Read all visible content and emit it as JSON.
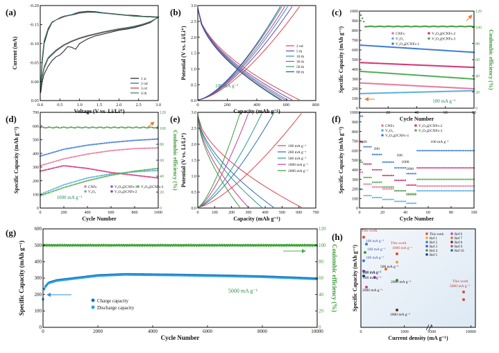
{
  "chart_data": [
    {
      "panel": "(a)",
      "type": "line",
      "xlabel": "Voltage (V vs. Li/Li⁺)",
      "ylabel": "Current (mA)",
      "xlim": [
        0,
        3.0
      ],
      "ylim": [
        -0.2,
        0.05
      ],
      "xticks": [
        "0.0",
        "0.5",
        "1.0",
        "1.5",
        "2.0",
        "2.5",
        "3.0"
      ],
      "yticks": [
        "0.05",
        "0.00",
        "-0.05",
        "-0.10",
        "-0.15",
        "-0.20"
      ],
      "legend": [
        "1 st",
        "2 nd",
        "3 rd",
        "4 th"
      ],
      "colors": [
        "#1a1a1a",
        "#2b56a8",
        "#c0392b",
        "#2e7d5b"
      ],
      "series": [
        {
          "name": "1 st",
          "x": [
            0.01,
            0.05,
            0.1,
            0.2,
            0.3,
            0.4,
            0.5,
            0.6,
            0.7,
            0.8,
            0.9,
            1.0,
            1.2,
            1.4,
            1.6,
            1.8,
            2.0,
            2.2,
            2.4,
            2.6,
            2.8,
            3.0,
            2.8,
            2.6,
            2.4,
            2.2,
            2.0,
            1.8,
            1.6,
            1.4,
            1.2,
            1.0,
            0.9,
            0.8,
            0.7,
            0.6,
            0.5,
            0.4,
            0.3,
            0.2,
            0.1,
            0.05,
            0.01
          ],
          "y": [
            -0.175,
            -0.1,
            -0.05,
            -0.015,
            0.005,
            0.012,
            0.018,
            0.022,
            0.024,
            0.026,
            0.03,
            0.033,
            0.035,
            0.034,
            0.031,
            0.029,
            0.027,
            0.025,
            0.024,
            0.022,
            0.021,
            0.02,
            0.005,
            -0.002,
            -0.008,
            -0.012,
            -0.015,
            -0.02,
            -0.025,
            -0.03,
            -0.038,
            -0.05,
            -0.065,
            -0.06,
            -0.058,
            -0.07,
            -0.08,
            -0.085,
            -0.095,
            -0.11,
            -0.13,
            -0.15,
            -0.18
          ]
        },
        {
          "name": "2 nd",
          "x": [
            0.01,
            0.05,
            0.1,
            0.2,
            0.3,
            0.4,
            0.5,
            0.6,
            0.7,
            0.8,
            0.9,
            1.0,
            1.2,
            1.4,
            1.6,
            1.8,
            2.0,
            2.2,
            2.4,
            2.6,
            2.8,
            3.0,
            2.8,
            2.6,
            2.4,
            2.2,
            2.0,
            1.8,
            1.6,
            1.4,
            1.2,
            1.0,
            0.8,
            0.6,
            0.4,
            0.2,
            0.1,
            0.05,
            0.01
          ],
          "y": [
            -0.17,
            -0.095,
            -0.045,
            -0.012,
            0.006,
            0.012,
            0.017,
            0.021,
            0.024,
            0.026,
            0.029,
            0.032,
            0.034,
            0.033,
            0.031,
            0.028,
            0.026,
            0.024,
            0.022,
            0.021,
            0.02,
            0.019,
            0.006,
            -0.001,
            -0.006,
            -0.01,
            -0.013,
            -0.017,
            -0.021,
            -0.026,
            -0.031,
            -0.037,
            -0.045,
            -0.055,
            -0.07,
            -0.09,
            -0.115,
            -0.14,
            -0.168
          ]
        },
        {
          "name": "3 rd",
          "x": [
            0.01,
            0.05,
            0.1,
            0.2,
            0.3,
            0.4,
            0.5,
            0.6,
            0.7,
            0.8,
            0.9,
            1.0,
            1.2,
            1.4,
            1.6,
            1.8,
            2.0,
            2.2,
            2.4,
            2.6,
            2.8,
            3.0,
            2.8,
            2.6,
            2.4,
            2.2,
            2.0,
            1.8,
            1.6,
            1.4,
            1.2,
            1.0,
            0.8,
            0.6,
            0.4,
            0.2,
            0.1,
            0.05,
            0.01
          ],
          "y": [
            -0.165,
            -0.09,
            -0.043,
            -0.011,
            0.006,
            0.012,
            0.017,
            0.021,
            0.023,
            0.025,
            0.028,
            0.031,
            0.033,
            0.032,
            0.03,
            0.028,
            0.026,
            0.024,
            0.022,
            0.021,
            0.02,
            0.019,
            0.007,
            0.0,
            -0.005,
            -0.009,
            -0.012,
            -0.016,
            -0.02,
            -0.025,
            -0.03,
            -0.036,
            -0.044,
            -0.054,
            -0.068,
            -0.088,
            -0.112,
            -0.137,
            -0.165
          ]
        },
        {
          "name": "4 th",
          "x": [
            0.01,
            0.05,
            0.1,
            0.2,
            0.3,
            0.4,
            0.5,
            0.6,
            0.7,
            0.8,
            0.9,
            1.0,
            1.2,
            1.4,
            1.6,
            1.8,
            2.0,
            2.2,
            2.4,
            2.6,
            2.8,
            3.0,
            2.8,
            2.6,
            2.4,
            2.2,
            2.0,
            1.8,
            1.6,
            1.4,
            1.2,
            1.0,
            0.8,
            0.6,
            0.4,
            0.2,
            0.1,
            0.05,
            0.01
          ],
          "y": [
            -0.16,
            -0.088,
            -0.042,
            -0.01,
            0.007,
            0.012,
            0.016,
            0.02,
            0.023,
            0.025,
            0.027,
            0.03,
            0.032,
            0.032,
            0.03,
            0.028,
            0.026,
            0.024,
            0.022,
            0.021,
            0.02,
            0.019,
            0.008,
            0.001,
            -0.004,
            -0.008,
            -0.011,
            -0.015,
            -0.019,
            -0.024,
            -0.029,
            -0.035,
            -0.043,
            -0.053,
            -0.067,
            -0.087,
            -0.11,
            -0.135,
            -0.162
          ]
        }
      ]
    },
    {
      "panel": "(b)",
      "type": "line",
      "xlabel": "Capacity (mAh g⁻¹)",
      "ylabel": "Potential (V vs. Li/Li⁺)",
      "xlim": [
        0,
        800
      ],
      "ylim": [
        0,
        3.0
      ],
      "xticks": [
        "0",
        "200",
        "400",
        "600",
        "800"
      ],
      "yticks": [
        "0.0",
        "0.5",
        "1.0",
        "1.5",
        "2.0",
        "2.5",
        "3.0"
      ],
      "annotation": "100 mA g⁻¹",
      "legend": [
        "2 nd",
        "5 th",
        "10 th",
        "30 th",
        "50 th",
        "80 th"
      ],
      "colors": [
        "#d9434b",
        "#7b3fa0",
        "#2a8fc2",
        "#cc3a8e",
        "#3a9a6a",
        "#2b4fa8"
      ],
      "capacities": [
        690,
        640,
        610,
        590,
        570,
        560
      ]
    },
    {
      "panel": "(c)",
      "type": "scatter",
      "xlabel": "Cycle Number",
      "ylabel": "Specific Capacity (mAh g⁻¹)",
      "y2label": "Coulombic efficiency (%)",
      "xlim": [
        0,
        80
      ],
      "ylim": [
        0,
        1000
      ],
      "y2lim": [
        0,
        120
      ],
      "xticks": [
        "0",
        "20",
        "40",
        "60",
        "80"
      ],
      "yticks": [
        "0",
        "100",
        "200",
        "300",
        "400",
        "500",
        "600",
        "700",
        "800",
        "900",
        "1000"
      ],
      "y2ticks": [
        "0",
        "20",
        "40",
        "60",
        "80",
        "100",
        "120"
      ],
      "annotation": "100 mA g⁻¹",
      "legend": [
        "CNFs",
        "V₂O₃",
        "V₂O₃@CNFs-1",
        "V₂O₃@CNFs-2",
        "V₂O₃@CNFs-3"
      ],
      "colors": [
        "#e8769a",
        "#5aaee0",
        "#3a7bd5",
        "#d62f6f",
        "#4caf50"
      ],
      "series": [
        {
          "name": "CNFs",
          "start": 260,
          "end": 200
        },
        {
          "name": "V₂O₃",
          "start": 150,
          "end": 180
        },
        {
          "name": "V₂O₃@CNFs-1",
          "start": 650,
          "end": 575
        },
        {
          "name": "V₂O₃@CNFs-2",
          "start": 470,
          "end": 420
        },
        {
          "name": "V₂O₃@CNFs-3",
          "start": 380,
          "end": 300
        }
      ],
      "efficiency": {
        "start": 115,
        "end": 101
      }
    },
    {
      "panel": "(d)",
      "type": "scatter",
      "xlabel": "Cycle Number",
      "ylabel": "Specific Capacity (mAh g⁻¹)",
      "y2label": "Coulombic efficiency (%)",
      "xlim": [
        0,
        1000
      ],
      "ylim": [
        0,
        700
      ],
      "y2lim": [
        0,
        120
      ],
      "xticks": [
        "0",
        "200",
        "400",
        "600",
        "800",
        "1000"
      ],
      "yticks": [
        "0",
        "100",
        "200",
        "300",
        "400",
        "500",
        "600",
        "700"
      ],
      "y2ticks": [
        "0",
        "20",
        "40",
        "60",
        "80",
        "100",
        "120"
      ],
      "annotation": "1000 mA g⁻¹",
      "legend": [
        "CNFs",
        "V₂O₃",
        "V₂O₃@CNFs-1",
        "V₂O₃@CNFs-2",
        "V₂O₃@CNFs-3"
      ],
      "colors": [
        "#e8769a",
        "#5aaee0",
        "#3a7bd5",
        "#d62f6f",
        "#4caf50"
      ],
      "series": [
        {
          "name": "CNFs",
          "x": [
            0,
            200,
            400,
            600,
            800,
            1000
          ],
          "y": [
            310,
            360,
            395,
            420,
            435,
            440
          ]
        },
        {
          "name": "V₂O₃",
          "x": [
            0,
            200,
            400,
            600,
            800,
            1000
          ],
          "y": [
            100,
            170,
            220,
            250,
            265,
            275
          ]
        },
        {
          "name": "V₂O₃@CNFs-1",
          "x": [
            0,
            200,
            400,
            600,
            800,
            1000
          ],
          "y": [
            380,
            430,
            460,
            480,
            495,
            505
          ]
        },
        {
          "name": "V₂O₃@CNFs-2",
          "x": [
            0,
            200,
            400,
            600,
            800,
            1000
          ],
          "y": [
            270,
            310,
            290,
            260,
            240,
            220
          ]
        },
        {
          "name": "V₂O₃@CNFs-3",
          "x": [
            0,
            200,
            400,
            600,
            800,
            1000
          ],
          "y": [
            90,
            150,
            200,
            240,
            270,
            290
          ]
        }
      ],
      "efficiency": 101
    },
    {
      "panel": "(e)",
      "type": "line",
      "xlabel": "Capacity (mAh g⁻¹)",
      "ylabel": "Potential (V vs. Li/Li⁺)",
      "xlim": [
        0,
        700
      ],
      "ylim": [
        0,
        3.0
      ],
      "xticks": [
        "0",
        "100",
        "200",
        "300",
        "400",
        "500",
        "600",
        "700"
      ],
      "yticks": [
        "0.0",
        "0.5",
        "1.0",
        "1.5",
        "2.0",
        "2.5",
        "3.0"
      ],
      "legend": [
        "100 mA g⁻¹",
        "200 mA g⁻¹",
        "500 mA g⁻¹",
        "1000 mA g⁻¹",
        "2000 mA g⁻¹"
      ],
      "colors": [
        "#d9434b",
        "#2a6fb5",
        "#2a9a8a",
        "#cc3a8e",
        "#3a9a3a"
      ],
      "capacities": [
        615,
        450,
        380,
        300,
        250
      ]
    },
    {
      "panel": "(f)",
      "type": "scatter",
      "xlabel": "Cycle Number",
      "ylabel": "Specific Capacity (mAh g⁻¹)",
      "xlim": [
        0,
        100
      ],
      "ylim": [
        0,
        1000
      ],
      "xticks": [
        "0",
        "20",
        "40",
        "60",
        "80",
        "100"
      ],
      "yticks": [
        "0",
        "100",
        "200",
        "300",
        "400",
        "500",
        "600",
        "700",
        "800",
        "900",
        "1000"
      ],
      "legend": [
        "CNFs",
        "V₂O₃",
        "V₂O₃@CNFs-1",
        "V₂O₃@CNFs-2",
        "V₂O₃@CNFs-3"
      ],
      "colors": [
        "#e8769a",
        "#5aaee0",
        "#3a7bd5",
        "#d62f6f",
        "#4caf50"
      ],
      "rate_labels": [
        "100",
        "200",
        "500",
        "1000",
        "2000",
        "100 mA g⁻¹"
      ],
      "rate_steps": [
        {
          "name": "CNFs",
          "levels": [
            250,
            220,
            200,
            180,
            150,
            230
          ]
        },
        {
          "name": "V₂O₃",
          "levels": [
            130,
            110,
            90,
            70,
            50,
            180
          ]
        },
        {
          "name": "V₂O₃@CNFs-1",
          "levels": [
            640,
            560,
            480,
            420,
            360,
            600
          ]
        },
        {
          "name": "V₂O₃@CNFs-2",
          "levels": [
            460,
            400,
            340,
            290,
            240,
            420
          ]
        },
        {
          "name": "V₂O₃@CNFs-3",
          "levels": [
            320,
            270,
            220,
            180,
            140,
            300
          ]
        }
      ]
    },
    {
      "panel": "(g)",
      "type": "scatter",
      "xlabel": "Cycle Number",
      "ylabel": "Specific Capacity (mAh g⁻¹)",
      "y2label": "Coulombic efficiency (%)",
      "xlim": [
        0,
        10000
      ],
      "ylim": [
        0,
        600
      ],
      "y2lim": [
        0,
        120
      ],
      "xticks": [
        "0",
        "2000",
        "4000",
        "6000",
        "8000",
        "10000"
      ],
      "yticks": [
        "0",
        "100",
        "200",
        "300",
        "400",
        "500",
        "600"
      ],
      "y2ticks": [
        "0",
        "20",
        "40",
        "60",
        "80",
        "100",
        "120"
      ],
      "annotation": "5000 mA g⁻¹",
      "legend": [
        "Charge capacity",
        "Discharge capacity"
      ],
      "colors": [
        "#1e6fb8",
        "#29a3e8",
        "#3fa535"
      ],
      "capacity": {
        "x": [
          0,
          50,
          200,
          500,
          1000,
          2000,
          3000,
          4000,
          5000,
          6000,
          7000,
          8000,
          9000,
          10000
        ],
        "y": [
          170,
          240,
          270,
          285,
          295,
          315,
          322,
          320,
          318,
          315,
          312,
          308,
          302,
          295
        ]
      },
      "efficiency": 100
    },
    {
      "panel": "(h)",
      "type": "scatter",
      "xlabel": "Current density (mA g⁻¹)",
      "ylabel": "Specific Capacity (mAh g⁻¹)",
      "xticks": [
        "0",
        "1000",
        "9500",
        "10000"
      ],
      "legend": [
        "This work",
        "Ref 1",
        "Ref 2",
        "Ref 3",
        "Ref 4",
        "Ref 5",
        "Ref 6",
        "Ref 7",
        "Ref 8",
        "Ref 9",
        "Ref 10"
      ],
      "annotations": [
        "This work",
        "100 mA g⁻¹",
        "100 mA g⁻¹",
        "100 mA g⁻¹",
        "100 mA g⁻¹",
        "This work",
        "1000 mA g⁻¹",
        "500 mA g⁻¹",
        "200 mA g⁻¹",
        "100 mA g⁻¹",
        "2000 mA g⁻¹",
        "2000 mA g⁻¹",
        "1000 mA g⁻¹",
        "This work",
        "5000 mA g⁻¹"
      ]
    }
  ]
}
